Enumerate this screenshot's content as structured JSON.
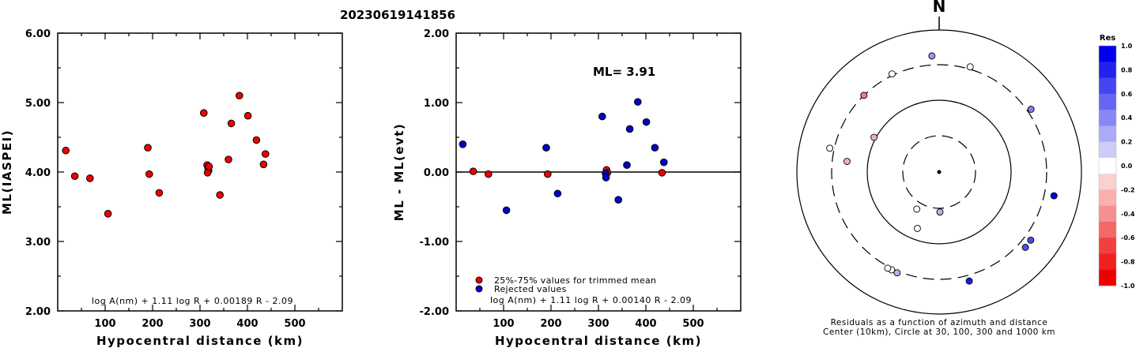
{
  "title": "20230619141856",
  "chart_data": [
    {
      "type": "scatter",
      "xlabel": "Hypocentral distance (km)",
      "ylabel": "ML(IASPEI)",
      "xlim": [
        0,
        600
      ],
      "ylim": [
        2.0,
        6.0
      ],
      "xticks": [
        "100",
        "200",
        "300",
        "400",
        "500"
      ],
      "yticks": [
        "2.00",
        "3.00",
        "4.00",
        "5.00",
        "6.00"
      ],
      "formula": "log A(nm) + 1.11 log R + 0.00189 R - 2.09",
      "marker_color": "#ee0000",
      "points": [
        {
          "x": 17,
          "y": 4.31
        },
        {
          "x": 36,
          "y": 3.94
        },
        {
          "x": 68,
          "y": 3.91
        },
        {
          "x": 106,
          "y": 3.4
        },
        {
          "x": 190,
          "y": 4.35
        },
        {
          "x": 193,
          "y": 3.97
        },
        {
          "x": 214,
          "y": 3.7
        },
        {
          "x": 308,
          "y": 4.85
        },
        {
          "x": 315,
          "y": 4.1
        },
        {
          "x": 317,
          "y": 4.06
        },
        {
          "x": 318,
          "y": 4.02
        },
        {
          "x": 316,
          "y": 3.99
        },
        {
          "x": 319,
          "y": 4.08
        },
        {
          "x": 342,
          "y": 3.67
        },
        {
          "x": 360,
          "y": 4.18
        },
        {
          "x": 366,
          "y": 4.7
        },
        {
          "x": 383,
          "y": 5.1
        },
        {
          "x": 401,
          "y": 4.81
        },
        {
          "x": 419,
          "y": 4.46
        },
        {
          "x": 434,
          "y": 4.11
        },
        {
          "x": 438,
          "y": 4.26
        }
      ]
    },
    {
      "type": "scatter",
      "xlabel": "Hypocentral distance (km)",
      "ylabel": "ML - ML(evt)",
      "xlim": [
        0,
        600
      ],
      "ylim": [
        -2.0,
        2.0
      ],
      "xticks": [
        "100",
        "200",
        "300",
        "400",
        "500"
      ],
      "yticks": [
        "-2.00",
        "-1.00",
        "0.00",
        "1.00",
        "2.00"
      ],
      "ml_label": "ML= 3.91",
      "formula": "log A(nm) + 1.11 log R + 0.00140 R - 2.09",
      "zero_line": true,
      "legend": [
        {
          "label": "25%-75% values for trimmed mean",
          "color": "#ee0000"
        },
        {
          "label": "Rejected values",
          "color": "#0000cc"
        }
      ],
      "series": [
        {
          "name": "25%-75% values for trimmed mean",
          "color": "#ee0000",
          "points": [
            {
              "x": 36,
              "y": 0.01
            },
            {
              "x": 68,
              "y": -0.03
            },
            {
              "x": 193,
              "y": -0.03
            },
            {
              "x": 317,
              "y": 0.03
            },
            {
              "x": 319,
              "y": -0.01
            },
            {
              "x": 434,
              "y": -0.01
            }
          ]
        },
        {
          "name": "Rejected values",
          "color": "#0000cc",
          "points": [
            {
              "x": 14,
              "y": 0.4
            },
            {
              "x": 106,
              "y": -0.55
            },
            {
              "x": 190,
              "y": 0.35
            },
            {
              "x": 214,
              "y": -0.31
            },
            {
              "x": 308,
              "y": 0.8
            },
            {
              "x": 315,
              "y": -0.02
            },
            {
              "x": 316,
              "y": -0.08
            },
            {
              "x": 342,
              "y": -0.4
            },
            {
              "x": 360,
              "y": 0.1
            },
            {
              "x": 366,
              "y": 0.62
            },
            {
              "x": 383,
              "y": 1.01
            },
            {
              "x": 401,
              "y": 0.72
            },
            {
              "x": 419,
              "y": 0.35
            },
            {
              "x": 438,
              "y": 0.14
            }
          ]
        }
      ]
    },
    {
      "type": "polar-scatter",
      "north_label": "N",
      "caption_line1": "Residuals as a function of azimuth and distance",
      "caption_line2": "Center (10km), Circle at 30, 100, 300 and 1000 km",
      "colorbar_title": "Res",
      "colorbar_range": [
        -1.0,
        1.0
      ],
      "colorbar_ticks": [
        "1.0",
        "0.8",
        "0.6",
        "0.4",
        "0.2",
        "0.0",
        "-0.2",
        "-0.4",
        "-0.6",
        "-0.8",
        "-1.0"
      ],
      "colorbar_colors": [
        "#0000ee",
        "#2222ef",
        "#4444f1",
        "#6666f3",
        "#8888f5",
        "#aaaaf8",
        "#ccccfa",
        "#ffffff",
        "#fad0d0",
        "#f8b0b0",
        "#f59090",
        "#f36868",
        "#f14040",
        "#ef2020",
        "#ee0000"
      ],
      "stations": [
        {
          "azimuth": 0.0,
          "distance_km": 10,
          "residual": 0.0,
          "center": true
        },
        {
          "azimuth": 178.9,
          "distance_km": 34,
          "residual": 0.3
        },
        {
          "azimuth": 211.1,
          "distance_km": 38,
          "residual": 0.0
        },
        {
          "azimuth": 201.1,
          "distance_km": 68,
          "residual": 0.0
        },
        {
          "azimuth": 298.1,
          "distance_km": 106,
          "residual": -0.3
        },
        {
          "azimuth": 276.6,
          "distance_km": 190,
          "residual": -0.3
        },
        {
          "azimuth": 315.6,
          "distance_km": 300,
          "residual": -0.5
        },
        {
          "azimuth": 205.9,
          "distance_km": 315,
          "residual": 0.0
        },
        {
          "azimuth": 208.1,
          "distance_km": 318,
          "residual": 0.0
        },
        {
          "azimuth": 202.6,
          "distance_km": 320,
          "residual": 0.3
        },
        {
          "azimuth": 334.4,
          "distance_km": 316,
          "residual": 0.0
        },
        {
          "azimuth": 16.4,
          "distance_km": 325,
          "residual": 0.0
        },
        {
          "azimuth": 356.4,
          "distance_km": 410,
          "residual": 0.4
        },
        {
          "azimuth": 55.6,
          "distance_km": 342,
          "residual": 0.5
        },
        {
          "azimuth": 164.6,
          "distance_km": 366,
          "residual": 0.9
        },
        {
          "azimuth": 131.2,
          "distance_km": 383,
          "residual": 0.7
        },
        {
          "azimuth": 126.7,
          "distance_km": 378,
          "residual": 0.7
        },
        {
          "azimuth": 101.7,
          "distance_km": 420,
          "residual": 1.0
        },
        {
          "azimuth": 282.3,
          "distance_km": 350,
          "residual": 0.0
        }
      ]
    }
  ]
}
